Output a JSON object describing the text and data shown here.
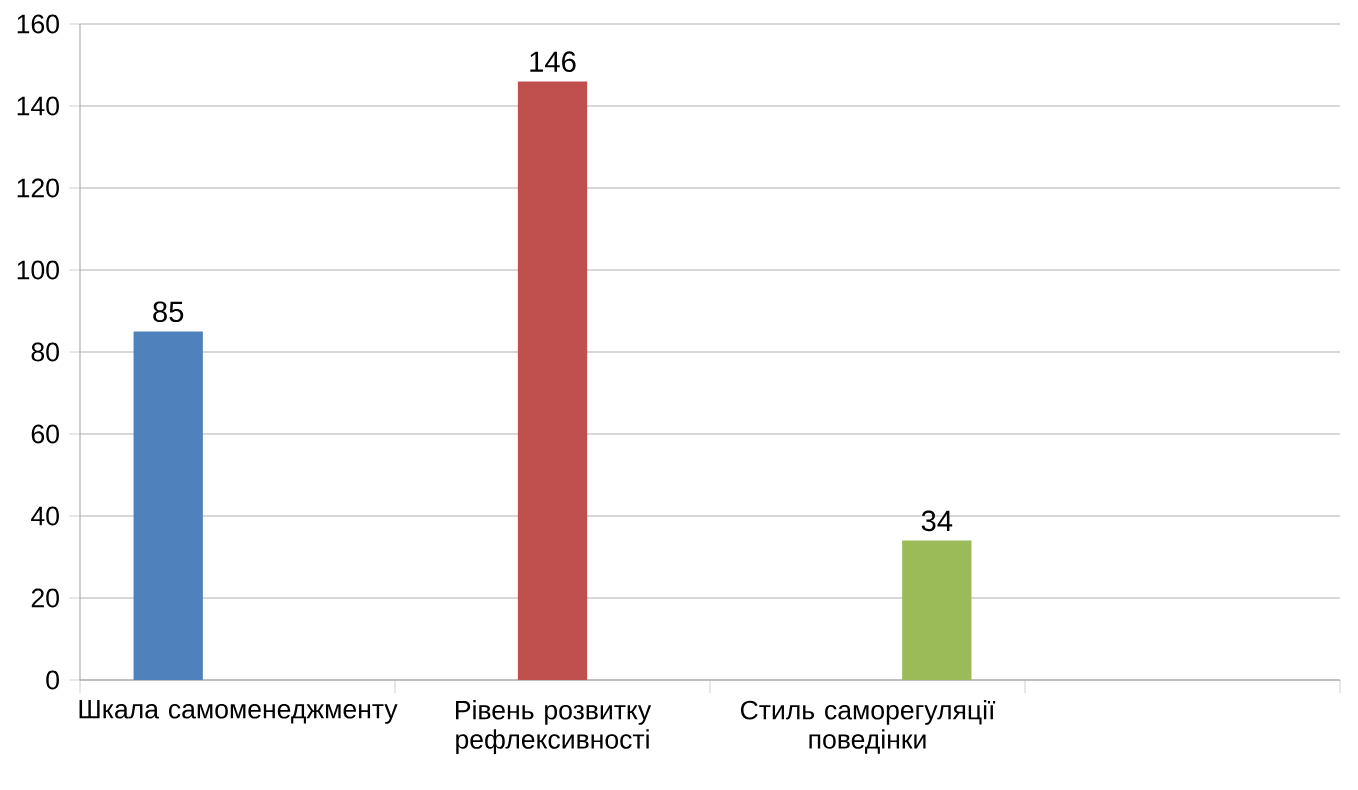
{
  "chart_data": {
    "type": "bar",
    "categories": [
      "Шкала самоменеджменту",
      "Рівень розвитку рефлексивності",
      "Стиль саморегуляції поведінки",
      null
    ],
    "series": [
      {
        "color": "#4f81bd",
        "values": [
          85,
          null,
          null,
          null
        ]
      },
      {
        "color": "#c0504d",
        "values": [
          null,
          146,
          null,
          null
        ]
      },
      {
        "color": "#9bbb59",
        "values": [
          null,
          null,
          34,
          null
        ]
      }
    ],
    "ylim": [
      0,
      160
    ],
    "yticks": [
      0,
      20,
      40,
      60,
      80,
      100,
      120,
      140,
      160
    ],
    "grid": "y",
    "data_labels": true
  }
}
